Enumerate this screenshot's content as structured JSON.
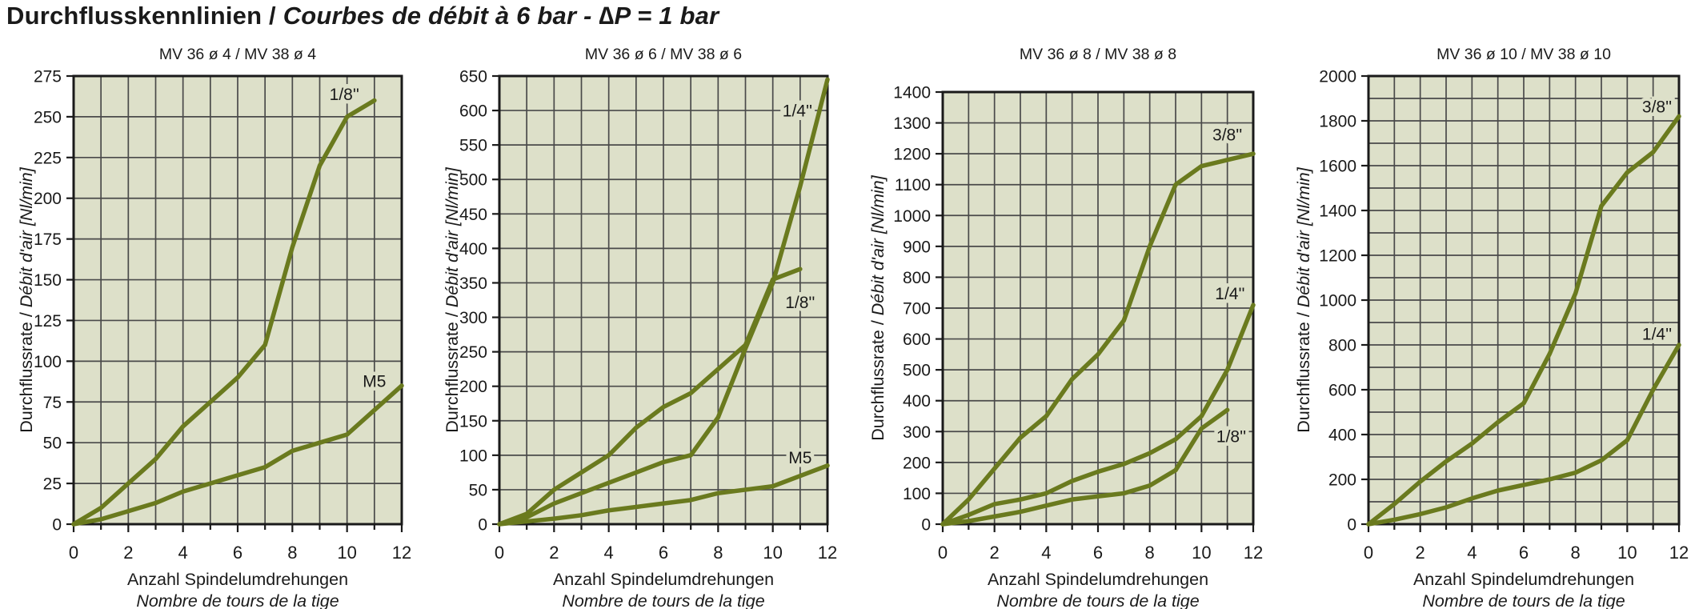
{
  "page_title": {
    "de": "Durchflusskennlinien",
    "sep": " / ",
    "fr": "Courbes de débit à 6 bar - ∆P = 1 bar"
  },
  "axis_titles": {
    "y_de": "Durchflussrate / ",
    "y_fr": "Débit d'air [Nl/min]",
    "x_de": "Anzahl Spindelumdrehungen",
    "x_fr": "Nombre de tours de la tige"
  },
  "colors": {
    "curve": "#6a7a1e",
    "plot_bg": "#dde0c9",
    "grid": "#4a4a4a",
    "axis": "#1a1a1a",
    "text": "#1a1a1a"
  },
  "chart_data": [
    {
      "type": "line",
      "subtitle": "MV 36 ø 4 / MV 38 ø 4",
      "xlabel": "Anzahl Spindelumdrehungen / Nombre de tours de la tige",
      "ylabel": "Durchflussrate / Débit d'air [Nl/min]",
      "xlim": [
        0,
        12
      ],
      "ylim": [
        0,
        275
      ],
      "x_grid_step": 1,
      "x_label_step": 2,
      "y_grid_step": 25,
      "y_label_step": 25,
      "y_top": 95,
      "series": [
        {
          "name": "1/8''",
          "x": [
            0,
            1,
            2,
            3,
            4,
            5,
            6,
            7,
            8,
            9,
            10,
            11
          ],
          "y": [
            0,
            10,
            25,
            40,
            60,
            75,
            90,
            110,
            170,
            220,
            250,
            260
          ],
          "label_x": 9.9,
          "label_y": 264
        },
        {
          "name": "M5",
          "x": [
            0,
            1,
            2,
            3,
            4,
            5,
            6,
            7,
            8,
            9,
            10,
            11,
            12
          ],
          "y": [
            0,
            3,
            8,
            13,
            20,
            25,
            30,
            35,
            45,
            50,
            55,
            70,
            85
          ],
          "label_x": 11.0,
          "label_y": 88
        }
      ]
    },
    {
      "type": "line",
      "subtitle": "MV 36 ø 6 / MV 38 ø 6",
      "xlabel": "Anzahl Spindelumdrehungen / Nombre de tours de la tige",
      "ylabel": "Durchflussrate / Débit d'air [Nl/min]",
      "xlim": [
        0,
        12
      ],
      "ylim": [
        0,
        650
      ],
      "x_grid_step": 1,
      "x_label_step": 2,
      "y_grid_step": 50,
      "y_label_step": 50,
      "y_top": 95,
      "series": [
        {
          "name": "1/4''",
          "x": [
            0,
            1,
            2,
            3,
            4,
            5,
            6,
            7,
            8,
            9,
            10,
            11,
            12
          ],
          "y": [
            0,
            10,
            30,
            45,
            60,
            75,
            90,
            100,
            155,
            255,
            350,
            490,
            645
          ],
          "label_x": 10.9,
          "label_y": 600
        },
        {
          "name": "1/8''",
          "x": [
            0,
            1,
            2,
            3,
            4,
            5,
            6,
            7,
            8,
            9,
            10,
            11
          ],
          "y": [
            0,
            15,
            50,
            75,
            100,
            140,
            170,
            190,
            225,
            260,
            355,
            370
          ],
          "label_x": 11.0,
          "label_y": 322
        },
        {
          "name": "M5",
          "x": [
            0,
            1,
            2,
            3,
            4,
            5,
            6,
            7,
            8,
            9,
            10,
            11,
            12
          ],
          "y": [
            0,
            4,
            8,
            13,
            20,
            25,
            30,
            35,
            45,
            50,
            55,
            70,
            85
          ],
          "label_x": 11.0,
          "label_y": 97
        }
      ]
    },
    {
      "type": "line",
      "subtitle": "MV 36 ø 8 / MV 38 ø 8",
      "xlabel": "Anzahl Spindelumdrehungen / Nombre de tours de la tige",
      "ylabel": "Durchflussrate / Débit d'air [Nl/min]",
      "xlim": [
        0,
        12
      ],
      "ylim": [
        0,
        1400
      ],
      "x_grid_step": 1,
      "x_label_step": 2,
      "y_grid_step": 100,
      "y_label_step": 100,
      "y_top": 115,
      "series": [
        {
          "name": "3/8''",
          "x": [
            0,
            1,
            2,
            3,
            4,
            5,
            6,
            7,
            8,
            9,
            10,
            11,
            12
          ],
          "y": [
            0,
            80,
            180,
            280,
            350,
            470,
            550,
            660,
            900,
            1100,
            1160,
            1180,
            1200
          ],
          "label_x": 11.0,
          "label_y": 1262
        },
        {
          "name": "1/4''",
          "x": [
            0,
            1,
            2,
            3,
            4,
            5,
            6,
            7,
            8,
            9,
            10,
            11,
            12
          ],
          "y": [
            0,
            30,
            65,
            80,
            100,
            140,
            170,
            195,
            230,
            275,
            350,
            500,
            710
          ],
          "label_x": 11.1,
          "label_y": 748
        },
        {
          "name": "1/8''",
          "x": [
            0,
            1,
            2,
            3,
            4,
            5,
            6,
            7,
            8,
            9,
            10,
            11
          ],
          "y": [
            0,
            10,
            25,
            40,
            60,
            80,
            90,
            100,
            125,
            175,
            310,
            370
          ],
          "label_x": 11.15,
          "label_y": 285
        }
      ]
    },
    {
      "type": "line",
      "subtitle": "MV 36 ø 10 / MV 38 ø 10",
      "xlabel": "Anzahl Spindelumdrehungen / Nombre de tours de la tige",
      "ylabel": "Durchflussrate / Débit d'air [Nl/min]",
      "xlim": [
        0,
        12
      ],
      "ylim": [
        0,
        2000
      ],
      "x_grid_step": 1,
      "x_label_step": 2,
      "y_grid_step": 100,
      "y_label_step": 200,
      "y_top": 95,
      "series": [
        {
          "name": "3/8''",
          "x": [
            0,
            1,
            2,
            3,
            4,
            5,
            6,
            7,
            8,
            9,
            10,
            11,
            12
          ],
          "y": [
            0,
            90,
            190,
            280,
            360,
            455,
            540,
            760,
            1030,
            1420,
            1570,
            1660,
            1820
          ],
          "label_x": 11.15,
          "label_y": 1865
        },
        {
          "name": "1/4''",
          "x": [
            0,
            1,
            2,
            3,
            4,
            5,
            6,
            7,
            8,
            9,
            10,
            11,
            12
          ],
          "y": [
            0,
            20,
            45,
            75,
            115,
            150,
            175,
            200,
            230,
            285,
            375,
            600,
            800
          ],
          "label_x": 11.15,
          "label_y": 850
        }
      ]
    }
  ]
}
